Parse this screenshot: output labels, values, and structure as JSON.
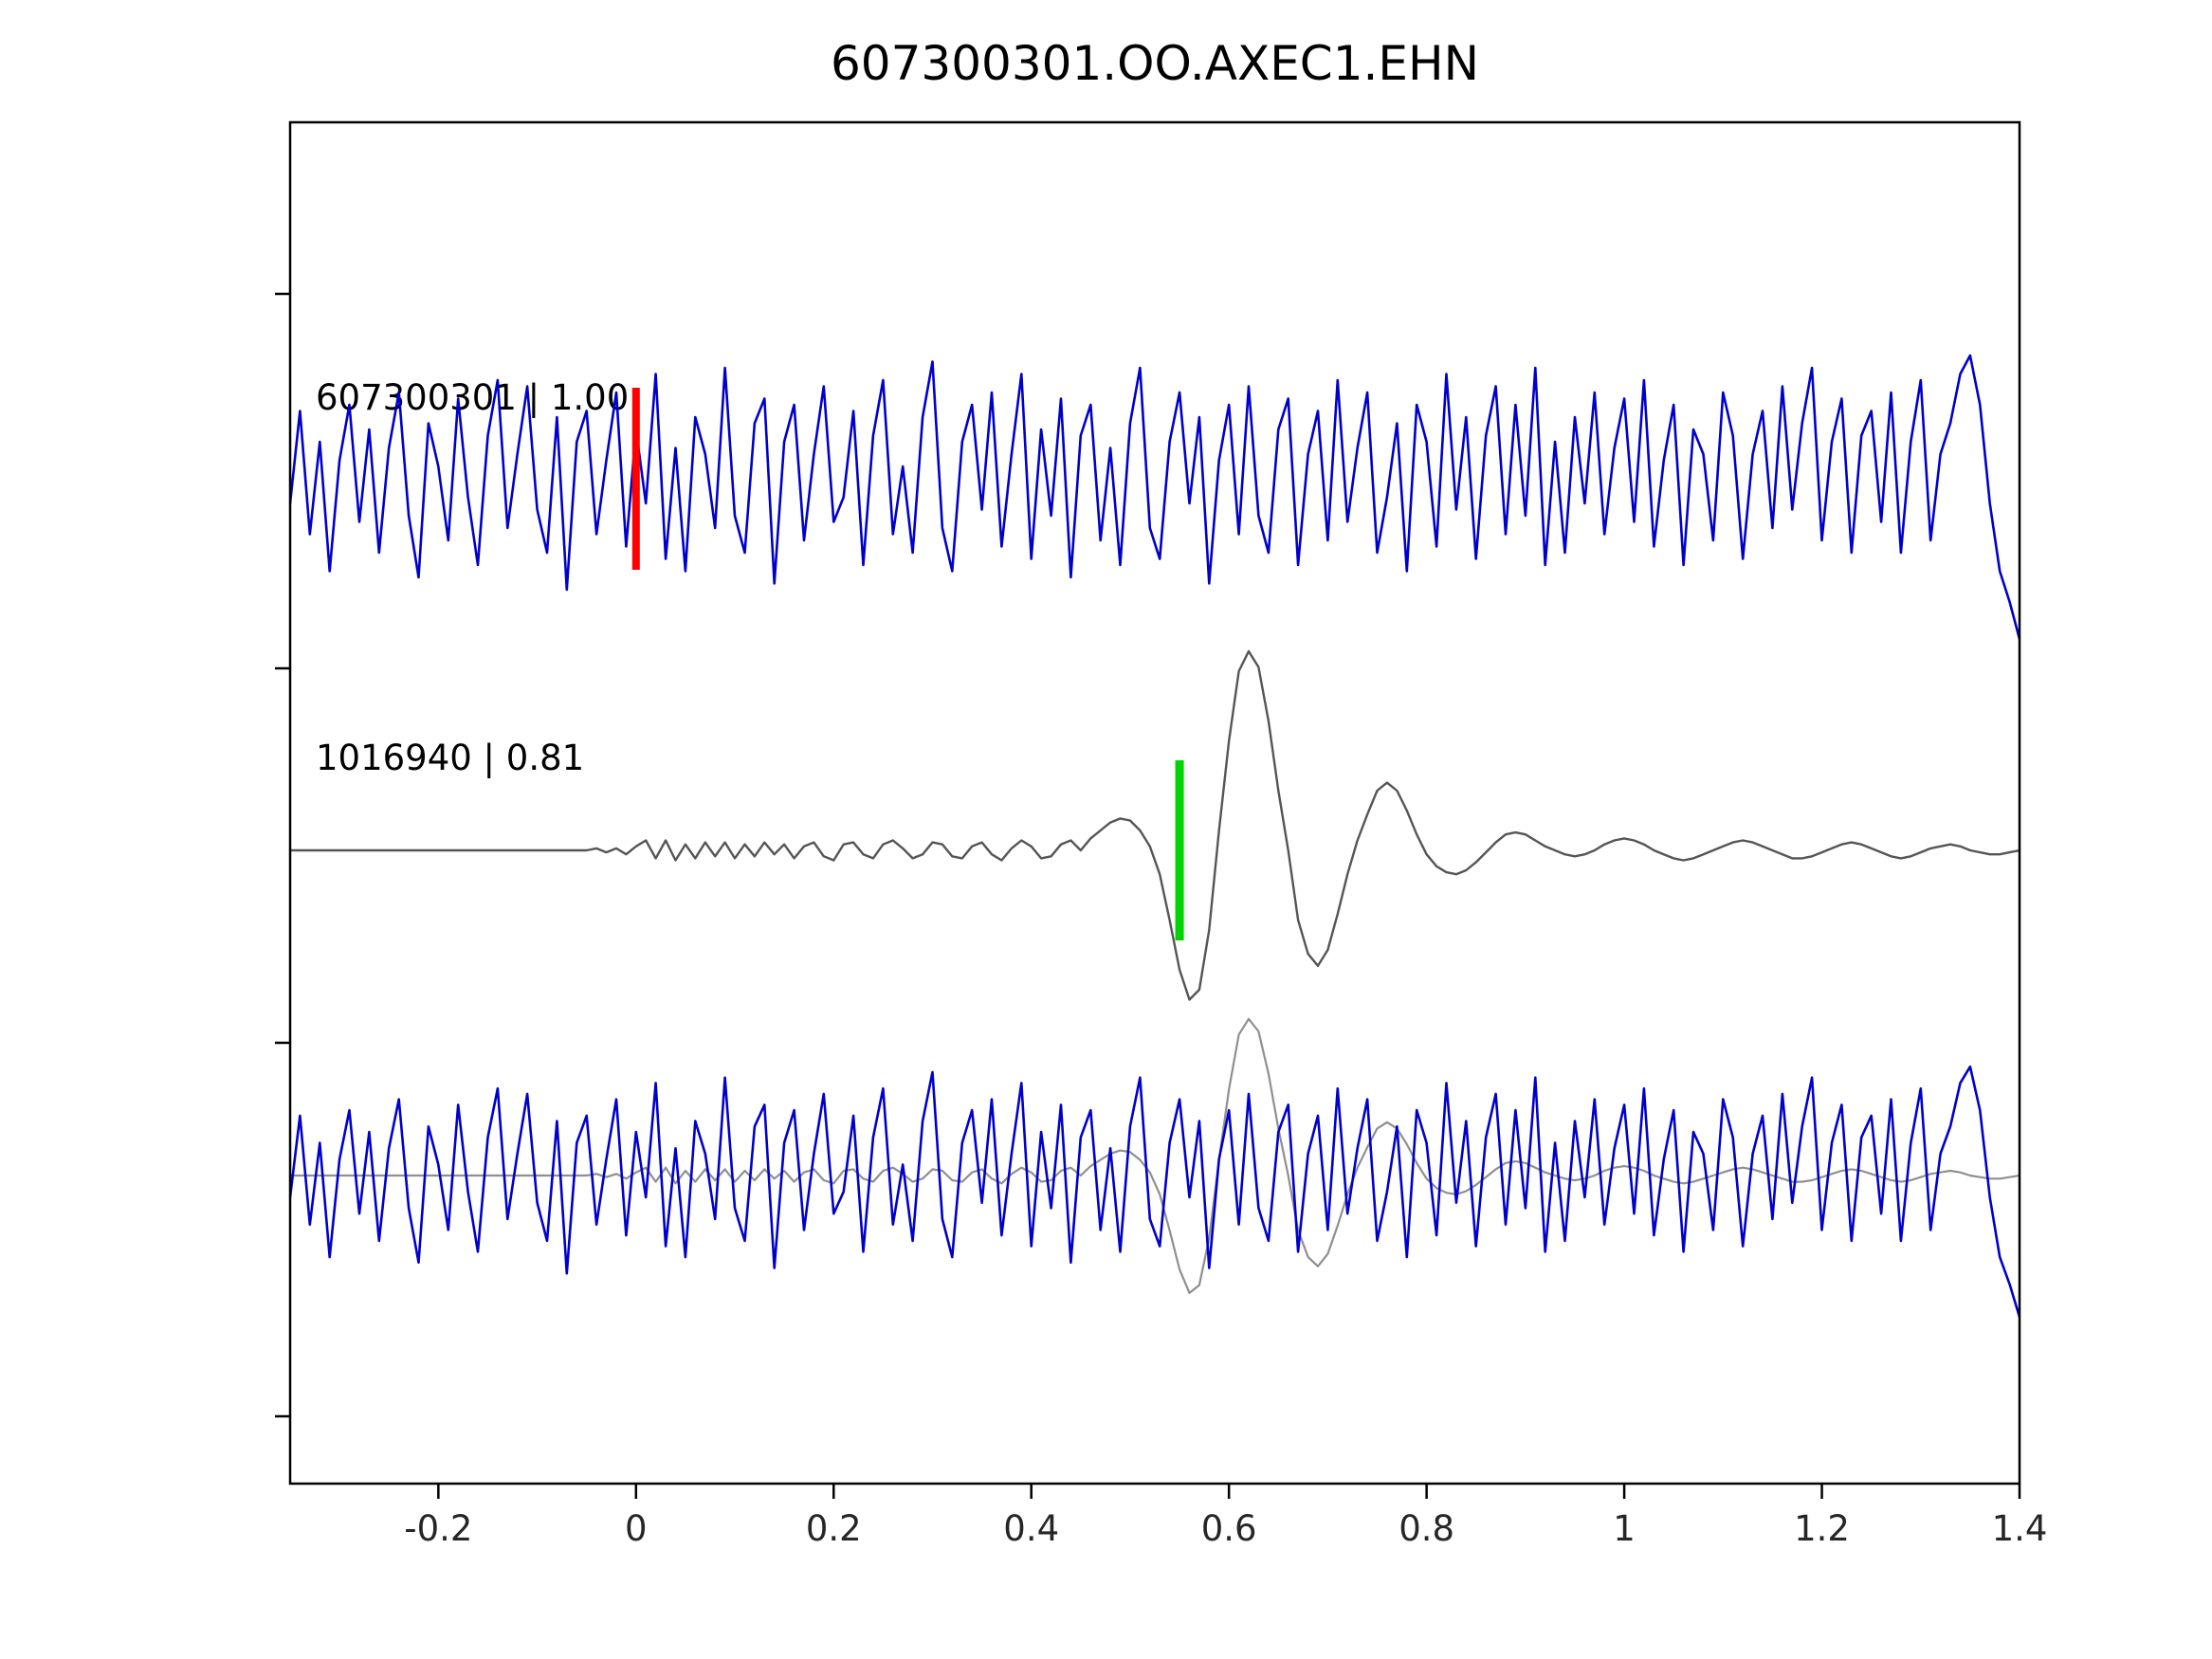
{
  "title": "607300301.OO.AXEC1.EHN",
  "chart_data": {
    "type": "line",
    "title": "607300301.OO.AXEC1.EHN",
    "xlabel": "",
    "ylabel": "",
    "xlim": [
      -0.35,
      1.4
    ],
    "grid": false,
    "legend": null,
    "x_ticks": [
      -0.2,
      0,
      0.2,
      0.4,
      0.6,
      0.8,
      1,
      1.2,
      1.4
    ],
    "x_tick_labels": [
      "-0.2",
      "0",
      "0.2",
      "0.4",
      "0.6",
      "0.8",
      "1",
      "1.2",
      "1.4"
    ],
    "colors": {
      "template_trace": "#0000cc",
      "detection_trace": "#555555",
      "overlay_gray_trace": "#8f8f8f",
      "template_pick_marker": "#ff0000",
      "detection_pick_marker": "#00d400",
      "axis": "#000000"
    },
    "rows": [
      {
        "label": "607300301 | 1.00",
        "trace_id": "607300301",
        "correlation": "1.00",
        "marker_x": 0,
        "marker_color": "#ff0000",
        "series": [
          {
            "name": "template-waveform",
            "ref": "noise",
            "color": "#0000cc",
            "scale": 1,
            "width": 2.6
          }
        ]
      },
      {
        "label": "1016940 | 0.81",
        "trace_id": "1016940",
        "correlation": "0.81",
        "marker_x": 0.55,
        "marker_color": "#00d400",
        "series": [
          {
            "name": "detection-waveform",
            "ref": "wavelet",
            "color": "#555555",
            "scale": 1,
            "width": 2.4
          }
        ]
      },
      {
        "label": "",
        "trace_id": "",
        "correlation": "",
        "marker_x": null,
        "marker_color": null,
        "series": [
          {
            "name": "overlay-detection-waveform",
            "ref": "wavelet",
            "color": "#8f8f8f",
            "scale": 1.18,
            "width": 2.2
          },
          {
            "name": "overlay-template-waveform",
            "ref": "noise",
            "color": "#0000cc",
            "scale": 0.82,
            "width": 2.6
          }
        ]
      }
    ],
    "waveforms": {
      "noise": [
        -0.2,
        0.55,
        -0.45,
        0.3,
        -0.75,
        0.15,
        0.6,
        -0.35,
        0.4,
        -0.6,
        0.25,
        0.7,
        -0.3,
        -0.8,
        0.45,
        0.1,
        -0.5,
        0.65,
        -0.15,
        -0.7,
        0.35,
        0.8,
        -0.4,
        0.2,
        0.75,
        -0.25,
        -0.6,
        0.5,
        -0.9,
        0.3,
        0.55,
        -0.45,
        0.15,
        0.7,
        -0.55,
        0.4,
        -0.2,
        0.85,
        -0.65,
        0.25,
        -0.75,
        0.5,
        0.2,
        -0.4,
        0.9,
        -0.3,
        -0.6,
        0.45,
        0.65,
        -0.85,
        0.3,
        0.6,
        -0.5,
        0.2,
        0.75,
        -0.35,
        -0.15,
        0.55,
        -0.7,
        0.35,
        0.8,
        -0.45,
        0.1,
        -0.6,
        0.5,
        0.95,
        -0.4,
        -0.75,
        0.3,
        0.6,
        -0.25,
        0.7,
        -0.55,
        0.2,
        0.85,
        -0.65,
        0.4,
        -0.3,
        0.65,
        -0.8,
        0.35,
        0.6,
        -0.5,
        0.25,
        -0.7,
        0.45,
        0.9,
        -0.4,
        -0.65,
        0.3,
        0.7,
        -0.2,
        0.5,
        -0.85,
        0.15,
        0.6,
        -0.45,
        0.75,
        -0.3,
        -0.6,
        0.4,
        0.65,
        -0.7,
        0.2,
        0.55,
        -0.5,
        0.8,
        -0.35,
        0.25,
        0.7,
        -0.6,
        -0.15,
        0.45,
        -0.75,
        0.6,
        0.3,
        -0.55,
        0.85,
        -0.25,
        0.5,
        -0.65,
        0.35,
        0.75,
        -0.45,
        0.6,
        -0.3,
        0.9,
        -0.7,
        0.3,
        -0.6,
        0.5,
        -0.2,
        0.7,
        -0.45,
        0.25,
        0.65,
        -0.35,
        0.8,
        -0.55,
        0.15,
        0.6,
        -0.7,
        0.4,
        0.2,
        -0.5,
        0.7,
        0.35,
        -0.65,
        0.2,
        0.55,
        -0.4,
        0.75,
        -0.25,
        0.45,
        0.9,
        -0.5,
        0.3,
        0.65,
        -0.6,
        0.35,
        0.55,
        -0.35,
        0.7,
        -0.6,
        0.3,
        0.8,
        -0.5,
        0.2,
        0.45,
        0.85,
        1.0,
        0.6,
        -0.2,
        -0.75,
        -1.0,
        -1.3
      ],
      "wavelet": [
        0,
        0,
        0,
        0,
        0,
        0,
        0,
        0,
        0,
        0,
        0,
        0,
        0,
        0,
        0,
        0,
        0,
        0,
        0,
        0,
        0,
        0,
        0,
        0,
        0,
        0,
        0,
        0,
        0,
        0,
        0,
        0.01,
        -0.01,
        0.01,
        -0.02,
        0.02,
        0.05,
        -0.04,
        0.05,
        -0.05,
        0.03,
        -0.04,
        0.04,
        -0.03,
        0.04,
        -0.04,
        0.03,
        -0.03,
        0.04,
        -0.02,
        0.03,
        -0.04,
        0.02,
        0.04,
        -0.03,
        -0.05,
        0.03,
        0.04,
        -0.02,
        -0.04,
        0.03,
        0.05,
        0.01,
        -0.04,
        -0.02,
        0.04,
        0.03,
        -0.03,
        -0.04,
        0.02,
        0.04,
        -0.02,
        -0.05,
        0.01,
        0.05,
        0.02,
        -0.04,
        -0.03,
        0.03,
        0.05,
        0.0,
        0.06,
        0.1,
        0.14,
        0.16,
        0.15,
        0.1,
        0.02,
        -0.12,
        -0.35,
        -0.6,
        -0.75,
        -0.7,
        -0.4,
        0.1,
        0.55,
        0.9,
        1.0,
        0.92,
        0.65,
        0.3,
        0.0,
        -0.35,
        -0.52,
        -0.58,
        -0.5,
        -0.32,
        -0.12,
        0.05,
        0.18,
        0.3,
        0.34,
        0.3,
        0.2,
        0.08,
        -0.02,
        -0.08,
        -0.11,
        -0.12,
        -0.1,
        -0.06,
        -0.01,
        0.04,
        0.08,
        0.09,
        0.08,
        0.05,
        0.02,
        0.0,
        -0.02,
        -0.03,
        -0.02,
        0.0,
        0.03,
        0.05,
        0.06,
        0.05,
        0.03,
        0.0,
        -0.02,
        -0.04,
        -0.05,
        -0.04,
        -0.02,
        0.0,
        0.02,
        0.04,
        0.05,
        0.04,
        0.02,
        0.0,
        -0.02,
        -0.04,
        -0.04,
        -0.03,
        -0.01,
        0.01,
        0.03,
        0.04,
        0.03,
        0.01,
        -0.01,
        -0.03,
        -0.04,
        -0.03,
        -0.01,
        0.01,
        0.02,
        0.03,
        0.02,
        0.0,
        -0.01,
        -0.02,
        -0.02,
        -0.01,
        0.0
      ]
    }
  }
}
